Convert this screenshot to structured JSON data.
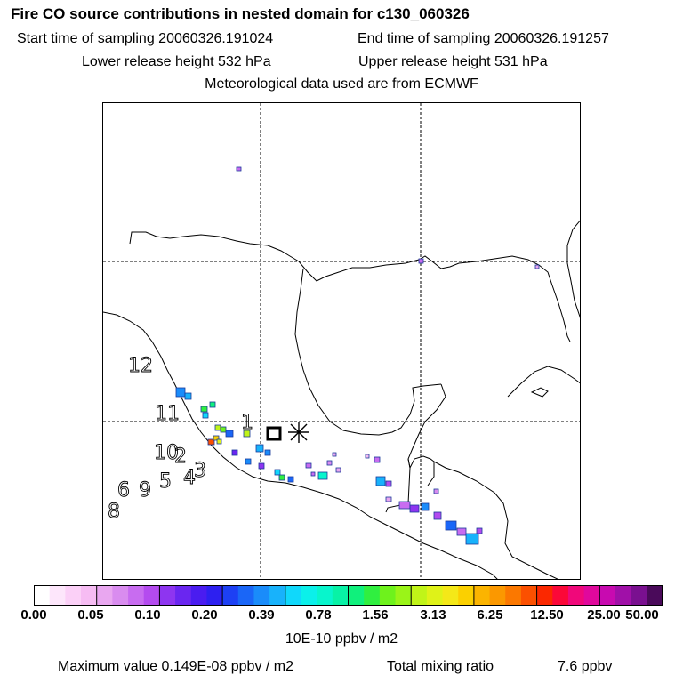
{
  "header": {
    "title": "Fire CO source contributions in nested domain for c130_060326",
    "start_time": "Start time of sampling 20060326.191024",
    "end_time": "End time of sampling 20060326.191257",
    "lower_release": "Lower release height  532 hPa",
    "upper_release": "Upper release height  531 hPa",
    "met_data": "Meteorological data used are from ECMWF"
  },
  "map": {
    "day_labels": [
      "12",
      "11",
      "1",
      "10",
      "2",
      "3",
      "4",
      "5",
      "6",
      "9",
      "8"
    ],
    "release_marker": "square",
    "receptor_marker": "asterisk"
  },
  "colorbar": {
    "tick_labels": [
      "0.00",
      "0.05",
      "0.10",
      "0.20",
      "0.39",
      "0.78",
      "1.56",
      "3.13",
      "6.25",
      "12.50",
      "25.00",
      "50.00"
    ],
    "colors": [
      "#ffffff",
      "#fde6fb",
      "#fbd0f7",
      "#f6bcf3",
      "#e9a7f0",
      "#d98cef",
      "#c86cf0",
      "#b44bef",
      "#8e35f0",
      "#6a26f0",
      "#4a1cf0",
      "#2d20f0",
      "#1d40f4",
      "#1a66f7",
      "#1a8cfa",
      "#18b2fb",
      "#10d8fb",
      "#0bf0ea",
      "#08f5cc",
      "#08f2a6",
      "#10f07c",
      "#30ef40",
      "#6ef21c",
      "#9af418",
      "#c0f418",
      "#dff218",
      "#f4e818",
      "#fbd000",
      "#fbb400",
      "#fb9800",
      "#fb7800",
      "#fb5000",
      "#fb2800",
      "#fb0838",
      "#f0087a",
      "#e0089c",
      "#c80ab0",
      "#a010a8",
      "#7a1090",
      "#4a0a5a"
    ],
    "units": "10E-10 ppbv / m2"
  },
  "footer": {
    "max_value": "Maximum value  0.149E-08 ppbv / m2",
    "total_label": "Total mixing ratio",
    "total_value": "7.6 ppbv"
  }
}
